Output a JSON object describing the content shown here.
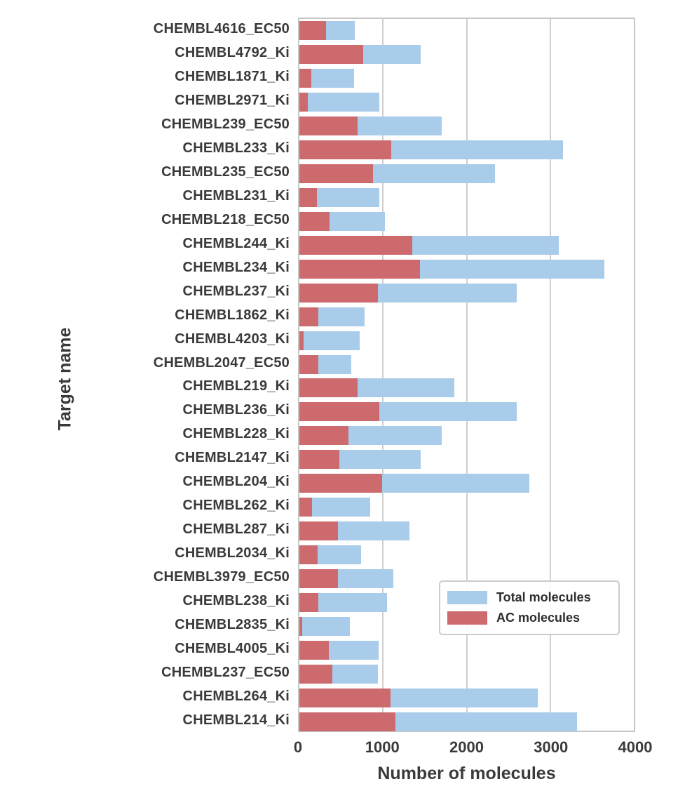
{
  "figure": {
    "xaxis_title": "Number of molecules",
    "yaxis_title": "Target name"
  },
  "legend": {
    "position": "lower right",
    "items": [
      {
        "label": "Total molecules",
        "color": "#a8cce9"
      },
      {
        "label": "AC molecules",
        "color": "#cd6a6e"
      }
    ]
  },
  "chart_data": {
    "type": "bar",
    "orientation": "horizontal",
    "title": "",
    "xlabel": "Number of molecules",
    "ylabel": "Target name",
    "xlim": [
      0,
      4000
    ],
    "xticks": [
      0,
      1000,
      2000,
      3000,
      4000
    ],
    "grid": "vertical gridlines at 1000/2000/3000, drawn behind bars",
    "legend_position": "lower right",
    "bar_style": "AC bars overlaid on Total bars, both starting at 0",
    "categories": [
      "CHEMBL4616_EC50",
      "CHEMBL4792_Ki",
      "CHEMBL1871_Ki",
      "CHEMBL2971_Ki",
      "CHEMBL239_EC50",
      "CHEMBL233_Ki",
      "CHEMBL235_EC50",
      "CHEMBL231_Ki",
      "CHEMBL218_EC50",
      "CHEMBL244_Ki",
      "CHEMBL234_Ki",
      "CHEMBL237_Ki",
      "CHEMBL1862_Ki",
      "CHEMBL4203_Ki",
      "CHEMBL2047_EC50",
      "CHEMBL219_Ki",
      "CHEMBL236_Ki",
      "CHEMBL228_Ki",
      "CHEMBL2147_Ki",
      "CHEMBL204_Ki",
      "CHEMBL262_Ki",
      "CHEMBL287_Ki",
      "CHEMBL2034_Ki",
      "CHEMBL3979_EC50",
      "CHEMBL238_Ki",
      "CHEMBL2835_Ki",
      "CHEMBL4005_Ki",
      "CHEMBL237_EC50",
      "CHEMBL264_Ki",
      "CHEMBL214_Ki"
    ],
    "series": [
      {
        "name": "Total molecules",
        "color": "#a8cce9",
        "values": [
          660,
          1450,
          650,
          960,
          1700,
          3150,
          2340,
          960,
          1020,
          3100,
          3650,
          2600,
          780,
          720,
          620,
          1850,
          2600,
          1700,
          1450,
          2750,
          850,
          1320,
          740,
          1120,
          1050,
          600,
          950,
          940,
          2850,
          3320
        ]
      },
      {
        "name": "AC molecules",
        "color": "#cd6a6e",
        "values": [
          320,
          760,
          140,
          100,
          700,
          1100,
          880,
          210,
          360,
          1350,
          1440,
          940,
          230,
          50,
          230,
          700,
          960,
          590,
          480,
          990,
          150,
          460,
          220,
          460,
          230,
          30,
          350,
          390,
          1090,
          1150
        ]
      }
    ],
    "colors": {
      "total_bar": "#a8cce9",
      "ac_bar": "#cd6a6e",
      "gridline": "#cfcfcf",
      "plot_border": "#c6c6c6",
      "text": "#3a3a3a"
    }
  }
}
